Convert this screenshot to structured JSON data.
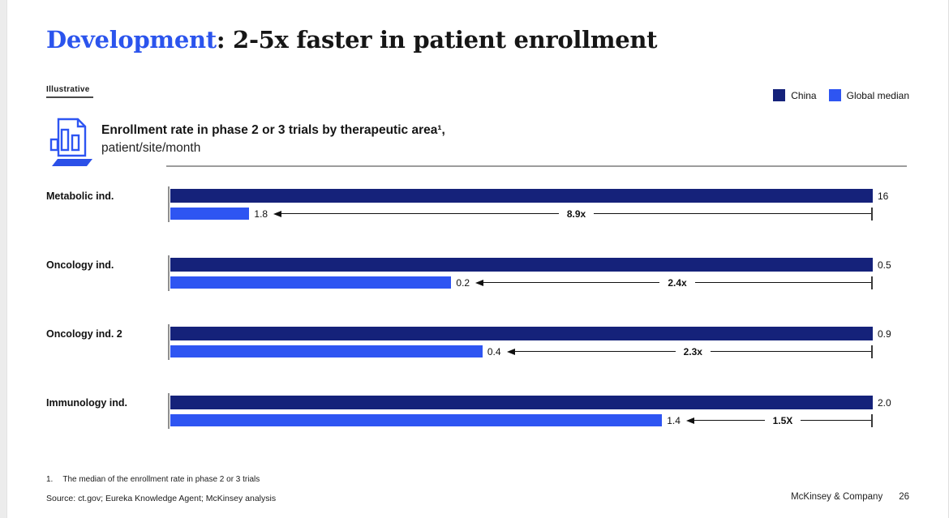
{
  "slide": {
    "title": {
      "highlight": "Development",
      "rest": ": 2-5x faster in patient enrollment"
    },
    "tag": "Illustrative",
    "chart_heading": {
      "line1": "Enrollment rate in phase 2 or 3 trials by therapeutic area¹,",
      "line2": "patient/site/month"
    },
    "legend": [
      {
        "label": "China",
        "color": "#15227a"
      },
      {
        "label": "Global median",
        "color": "#2e55f2"
      }
    ],
    "footnote": {
      "num": "1.",
      "text": "The median of the enrollment rate in phase 2 or 3 trials"
    },
    "source": "Source: ct.gov; Eureka Knowledge Agent; McKinsey analysis",
    "footer": {
      "brand": "McKinsey & Company",
      "page": "26"
    }
  },
  "chart_data": {
    "type": "bar",
    "orientation": "horizontal",
    "title": "Enrollment rate in phase 2 or 3 trials by therapeutic area¹, patient/site/month",
    "categories": [
      "Metabolic ind.",
      "Oncology ind.",
      "Oncology ind. 2",
      "Immunology ind."
    ],
    "series": [
      {
        "name": "China",
        "color": "#15227a",
        "values": [
          16,
          0.5,
          0.9,
          2.0
        ],
        "labels": [
          "16",
          "0.5",
          "0.9",
          "2.0"
        ]
      },
      {
        "name": "Global median",
        "color": "#2e55f2",
        "values": [
          1.8,
          0.2,
          0.4,
          1.4
        ],
        "labels": [
          "1.8",
          "0.2",
          "0.4",
          "1.4"
        ]
      }
    ],
    "multipliers": [
      "8.9x",
      "2.4x",
      "2.3x",
      "1.5X"
    ],
    "bar_scaling": "each China bar drawn full-width; Global bar width = global/china ratio",
    "legend_position": "top-right",
    "grid": false
  }
}
